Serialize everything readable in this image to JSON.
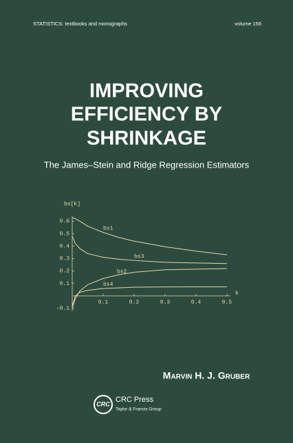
{
  "header": {
    "series": "STATISTICS: textbooks and monographs",
    "volume": "volume 156"
  },
  "title": {
    "lines": [
      "IMPROVING",
      "EFFICIENCY BY",
      "SHRINKAGE"
    ],
    "subtitle": "The James–Stein and Ridge Regression Estimators"
  },
  "chart_data": {
    "type": "line",
    "y_label": "bs[k]",
    "x_label": "k",
    "x": [
      0,
      0.01,
      0.025,
      0.05,
      0.1,
      0.15,
      0.2,
      0.3,
      0.4,
      0.5
    ],
    "series": [
      {
        "name": "bs1",
        "color": "#e6d7a6",
        "values": [
          0.63,
          0.62,
          0.6,
          0.56,
          0.51,
          0.47,
          0.44,
          0.395,
          0.36,
          0.33
        ]
      },
      {
        "name": "bs3",
        "color": "#e6d7a6",
        "values": [
          0.48,
          0.42,
          0.38,
          0.34,
          0.31,
          0.295,
          0.285,
          0.27,
          0.265,
          0.26
        ]
      },
      {
        "name": "bs2",
        "color": "#e6d7a6",
        "values": [
          -0.1,
          -0.02,
          0.04,
          0.09,
          0.14,
          0.17,
          0.19,
          0.21,
          0.215,
          0.22
        ]
      },
      {
        "name": "bs4",
        "color": "#e6d7a6",
        "values": [
          -0.08,
          0,
          0.03,
          0.045,
          0.06,
          0.065,
          0.07,
          0.072,
          0.073,
          0.073
        ]
      }
    ],
    "xlim": [
      0,
      0.5
    ],
    "ylim": [
      -0.1,
      0.65
    ],
    "xticks": [
      0.1,
      0.2,
      0.3,
      0.4,
      0.5
    ],
    "yticks": [
      -0.1,
      0.1,
      0.2,
      0.3,
      0.4,
      0.5,
      0.6
    ]
  },
  "author": "Marvin H. J. Gruber",
  "publisher": {
    "logo": "CRC",
    "name": "CRC Press",
    "group": "Taylor & Francis Group"
  }
}
